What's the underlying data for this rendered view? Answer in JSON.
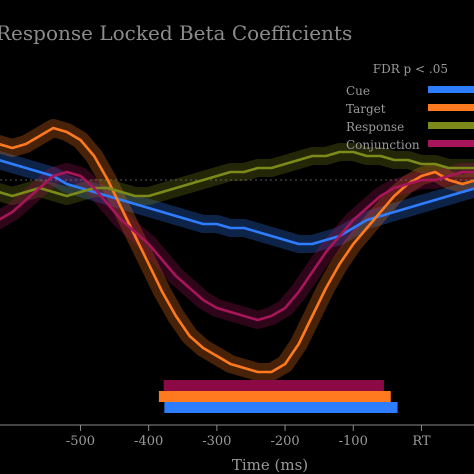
{
  "chart_data": {
    "type": "line",
    "title": "Response Locked Beta Coefficients",
    "xlabel": "Time (ms)",
    "ylabel": "",
    "xlim": [
      -640,
      80
    ],
    "ylim": [
      -0.3,
      0.15
    ],
    "baseline": 0,
    "grid": false,
    "legend_position": "top-right",
    "x_ticks": [
      {
        "value": -500,
        "label": "-500"
      },
      {
        "value": -400,
        "label": "-400"
      },
      {
        "value": -300,
        "label": "-300"
      },
      {
        "value": -200,
        "label": "-200"
      },
      {
        "value": -100,
        "label": "-100"
      },
      {
        "value": 0,
        "label": "RT"
      }
    ],
    "legend_title": "FDR p < .05",
    "x": [
      -640,
      -620,
      -600,
      -580,
      -560,
      -540,
      -520,
      -500,
      -480,
      -460,
      -440,
      -420,
      -400,
      -380,
      -360,
      -340,
      -320,
      -300,
      -280,
      -260,
      -240,
      -220,
      -200,
      -180,
      -160,
      -140,
      -120,
      -100,
      -80,
      -60,
      -40,
      -20,
      0,
      20,
      40,
      60,
      80
    ],
    "series": [
      {
        "name": "Cue",
        "color": "#2f7dff",
        "values": [
          0.03,
          0.025,
          0.02,
          0.015,
          0.01,
          0.005,
          -0.005,
          -0.01,
          -0.015,
          -0.02,
          -0.025,
          -0.03,
          -0.035,
          -0.04,
          -0.045,
          -0.05,
          -0.055,
          -0.055,
          -0.06,
          -0.06,
          -0.065,
          -0.07,
          -0.075,
          -0.08,
          -0.08,
          -0.075,
          -0.07,
          -0.06,
          -0.05,
          -0.045,
          -0.04,
          -0.035,
          -0.03,
          -0.025,
          -0.02,
          -0.015,
          -0.01
        ]
      },
      {
        "name": "Target",
        "color": "#ff7a1f",
        "values": [
          0.05,
          0.045,
          0.04,
          0.045,
          0.055,
          0.065,
          0.06,
          0.05,
          0.03,
          0.0,
          -0.035,
          -0.07,
          -0.105,
          -0.14,
          -0.17,
          -0.195,
          -0.21,
          -0.22,
          -0.23,
          -0.235,
          -0.24,
          -0.24,
          -0.23,
          -0.205,
          -0.17,
          -0.135,
          -0.105,
          -0.08,
          -0.06,
          -0.04,
          -0.02,
          -0.005,
          0.005,
          0.01,
          0.0,
          -0.005,
          0.0
        ]
      },
      {
        "name": "Response",
        "color": "#7c8a1a",
        "values": [
          -0.01,
          -0.015,
          -0.02,
          -0.015,
          -0.01,
          -0.015,
          -0.02,
          -0.015,
          -0.01,
          -0.01,
          -0.015,
          -0.02,
          -0.02,
          -0.015,
          -0.01,
          -0.005,
          0.0,
          0.005,
          0.01,
          0.01,
          0.015,
          0.015,
          0.02,
          0.025,
          0.03,
          0.03,
          0.035,
          0.035,
          0.03,
          0.03,
          0.025,
          0.025,
          0.02,
          0.02,
          0.015,
          0.015,
          0.015
        ]
      },
      {
        "name": "Conjunction",
        "color": "#a8155a",
        "values": [
          -0.06,
          -0.05,
          -0.04,
          -0.025,
          -0.01,
          0.005,
          0.01,
          0.005,
          -0.01,
          -0.03,
          -0.05,
          -0.065,
          -0.08,
          -0.1,
          -0.12,
          -0.135,
          -0.15,
          -0.16,
          -0.165,
          -0.17,
          -0.175,
          -0.17,
          -0.16,
          -0.14,
          -0.115,
          -0.09,
          -0.07,
          -0.05,
          -0.035,
          -0.02,
          -0.01,
          -0.005,
          0.0,
          0.0,
          0.005,
          0.01,
          0.01
        ]
      }
    ],
    "significance_bars": [
      {
        "name": "Conjunction",
        "color": "#8b0a45",
        "start": -378,
        "end": -55
      },
      {
        "name": "Target",
        "color": "#ff7a1f",
        "start": -385,
        "end": -45
      },
      {
        "name": "Cue",
        "color": "#2f7dff",
        "start": -377,
        "end": -35
      }
    ]
  }
}
